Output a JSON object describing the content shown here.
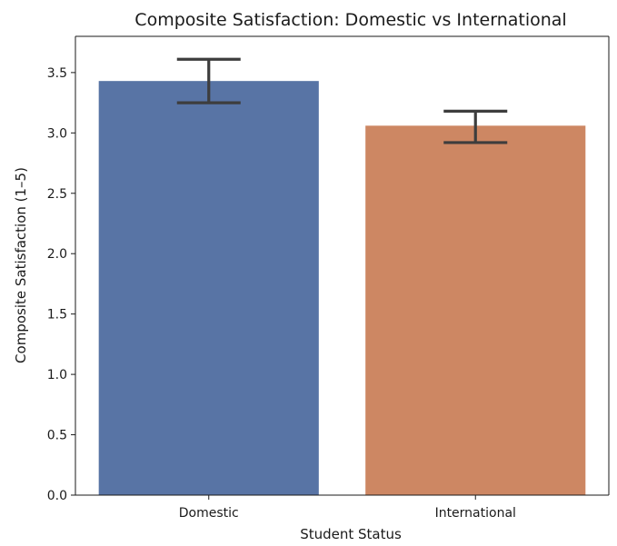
{
  "chart_data": {
    "type": "bar",
    "title": "Composite Satisfaction: Domestic vs International",
    "xlabel": "Student Status",
    "ylabel": "Composite Satisfaction (1–5)",
    "categories": [
      "Domestic",
      "International"
    ],
    "values": [
      3.43,
      3.06
    ],
    "error_bars": [
      {
        "low": 3.25,
        "high": 3.61
      },
      {
        "low": 2.92,
        "high": 3.18
      }
    ],
    "colors": [
      "#5874a5",
      "#cd8763"
    ],
    "error_bar_color": "#3d3d3d",
    "ylim": [
      0,
      3.8
    ],
    "yticks": [
      0.0,
      0.5,
      1.0,
      1.5,
      2.0,
      2.5,
      3.0,
      3.5
    ],
    "ytick_labels": [
      "0.0",
      "0.5",
      "1.0",
      "1.5",
      "2.0",
      "2.5",
      "3.0",
      "3.5"
    ],
    "grid": false,
    "legend": "none"
  }
}
